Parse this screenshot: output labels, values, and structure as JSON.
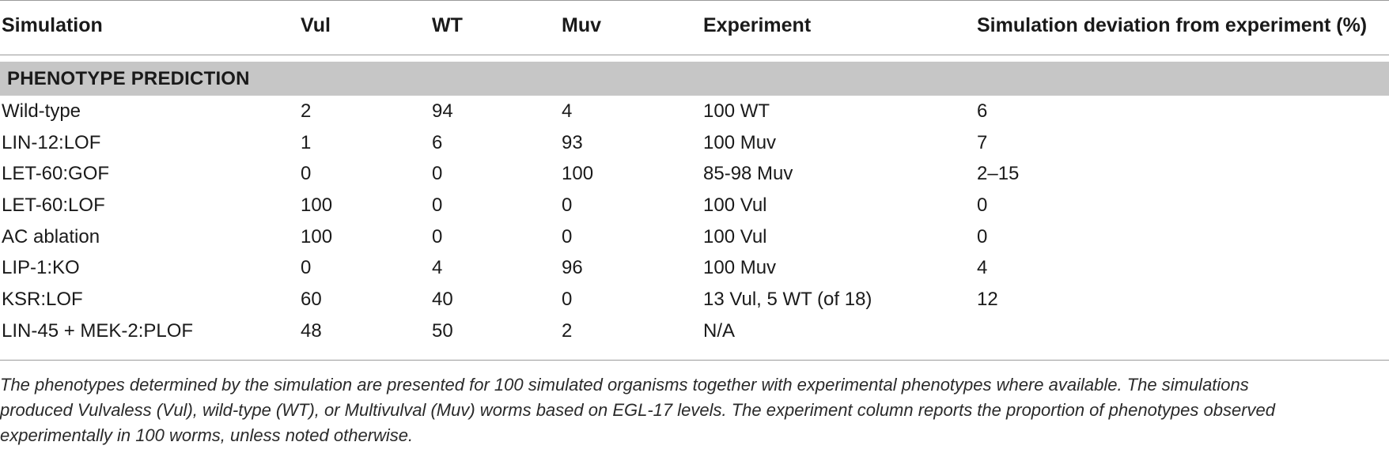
{
  "table": {
    "headers": {
      "simulation": "Simulation",
      "vul": "Vul",
      "wt": "WT",
      "muv": "Muv",
      "experiment": "Experiment",
      "deviation": "Simulation deviation from experiment (%)"
    },
    "section_title": "PHENOTYPE PREDICTION",
    "rows": [
      {
        "simulation": "Wild-type",
        "vul": "2",
        "wt": "94",
        "muv": "4",
        "experiment": "100 WT",
        "deviation": "6"
      },
      {
        "simulation": "LIN-12:LOF",
        "vul": "1",
        "wt": "6",
        "muv": "93",
        "experiment": "100 Muv",
        "deviation": "7"
      },
      {
        "simulation": "LET-60:GOF",
        "vul": "0",
        "wt": "0",
        "muv": "100",
        "experiment": "85-98 Muv",
        "deviation": "2–15"
      },
      {
        "simulation": "LET-60:LOF",
        "vul": "100",
        "wt": "0",
        "muv": "0",
        "experiment": "100 Vul",
        "deviation": "0"
      },
      {
        "simulation": "AC ablation",
        "vul": "100",
        "wt": "0",
        "muv": "0",
        "experiment": "100 Vul",
        "deviation": "0"
      },
      {
        "simulation": "LIP-1:KO",
        "vul": "0",
        "wt": "4",
        "muv": "96",
        "experiment": "100 Muv",
        "deviation": "4"
      },
      {
        "simulation": "KSR:LOF",
        "vul": "60",
        "wt": "40",
        "muv": "0",
        "experiment": "13 Vul, 5 WT (of 18)",
        "deviation": "12"
      },
      {
        "simulation": "LIN-45 + MEK-2:PLOF",
        "vul": "48",
        "wt": "50",
        "muv": "2",
        "experiment": "N/A",
        "deviation": ""
      }
    ]
  },
  "footnote": {
    "line1": "The phenotypes determined by the simulation are presented for 100 simulated organisms together with experimental phenotypes where available. The simulations",
    "line2": "produced Vulvaless (Vul), wild-type (WT), or Multivulval (Muv) worms based on EGL-17 levels. The experiment column reports the proportion of phenotypes observed",
    "line3": "experimentally in 100 worms, unless noted otherwise."
  }
}
